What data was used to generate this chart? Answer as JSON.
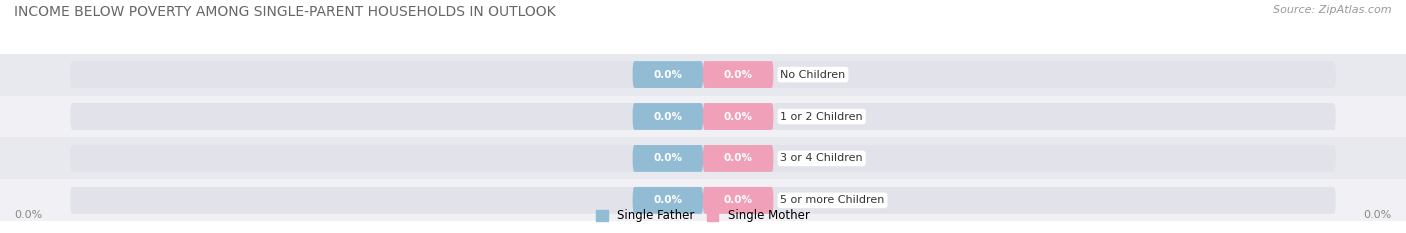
{
  "title": "INCOME BELOW POVERTY AMONG SINGLE-PARENT HOUSEHOLDS IN OUTLOOK",
  "source": "Source: ZipAtlas.com",
  "categories": [
    "No Children",
    "1 or 2 Children",
    "3 or 4 Children",
    "5 or more Children"
  ],
  "father_values": [
    0.0,
    0.0,
    0.0,
    0.0
  ],
  "mother_values": [
    0.0,
    0.0,
    0.0,
    0.0
  ],
  "father_color": "#92bcd4",
  "mother_color": "#f0a0b8",
  "bar_bg_color": "#e2e2ea",
  "row_bg_even": "#f0f0f5",
  "row_bg_odd": "#e8e8ef",
  "title_fontsize": 10,
  "source_fontsize": 8,
  "cat_fontsize": 8,
  "value_fontsize": 7.5,
  "legend_fontsize": 8.5,
  "axis_label_fontsize": 8,
  "xlim_left": "0.0%",
  "xlim_right": "0.0%",
  "background_color": "#ffffff",
  "title_color": "#666666",
  "source_color": "#999999",
  "axis_label_color": "#888888"
}
